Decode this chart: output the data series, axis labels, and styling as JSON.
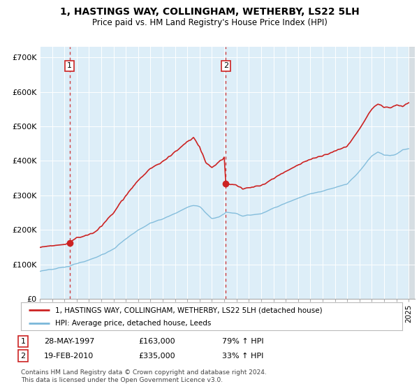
{
  "title": "1, HASTINGS WAY, COLLINGHAM, WETHERBY, LS22 5LH",
  "subtitle": "Price paid vs. HM Land Registry's House Price Index (HPI)",
  "legend_line1": "1, HASTINGS WAY, COLLINGHAM, WETHERBY, LS22 5LH (detached house)",
  "legend_line2": "HPI: Average price, detached house, Leeds",
  "footnote": "Contains HM Land Registry data © Crown copyright and database right 2024.\nThis data is licensed under the Open Government Licence v3.0.",
  "transaction1": {
    "label": "1",
    "date": "28-MAY-1997",
    "price": "£163,000",
    "change": "79% ↑ HPI"
  },
  "transaction2": {
    "label": "2",
    "date": "19-FEB-2010",
    "price": "£335,000",
    "change": "33% ↑ HPI"
  },
  "ylim": [
    0,
    730000
  ],
  "yticks": [
    0,
    100000,
    200000,
    300000,
    400000,
    500000,
    600000,
    700000
  ],
  "ytick_labels": [
    "£0",
    "£100K",
    "£200K",
    "£300K",
    "£400K",
    "£500K",
    "£600K",
    "£700K"
  ],
  "hpi_color": "#7ab8d9",
  "price_color": "#cc2222",
  "marker1_x": 1997.42,
  "marker1_y": 163000,
  "marker2_x": 2010.12,
  "marker2_y": 335000,
  "vline1_x": 1997.42,
  "vline2_x": 2010.12,
  "background_color": "#ddeef8",
  "future_bg_color": "#e8e8e8",
  "xlim_start": 1995.0,
  "xlim_end": 2025.5,
  "future_start": 2025.0
}
